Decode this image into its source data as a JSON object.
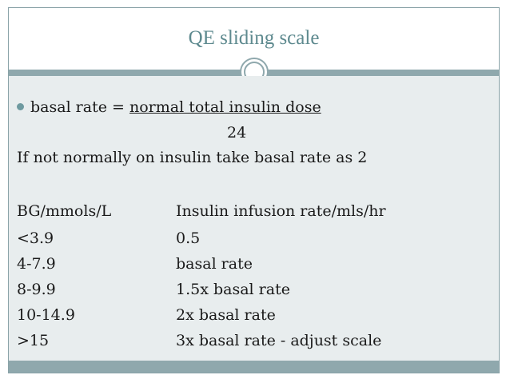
{
  "slide": {
    "title": "QE sliding scale",
    "bullet_prefix": "basal rate = ",
    "bullet_underlined": "normal total insulin dose",
    "denominator": "24",
    "note": "If not normally on insulin take basal rate as 2",
    "table": {
      "header": {
        "bg": "BG/mmols/L",
        "rate": "Insulin infusion rate/mls/hr"
      },
      "rows": [
        {
          "bg": "<3.9",
          "rate": "0.5"
        },
        {
          "bg": "4-7.9",
          "rate": "basal rate"
        },
        {
          "bg": "8-9.9",
          "rate": "1.5x basal rate"
        },
        {
          "bg": "10-14.9",
          "rate": "2x basal rate"
        },
        {
          "bg": ">15",
          "rate": "3x basal rate - adjust scale"
        }
      ]
    }
  },
  "colors": {
    "title": "#5e8a8f",
    "accent": "#8fa8ad",
    "content_bg": "#e8edee",
    "bullet": "#6e9aa0"
  }
}
